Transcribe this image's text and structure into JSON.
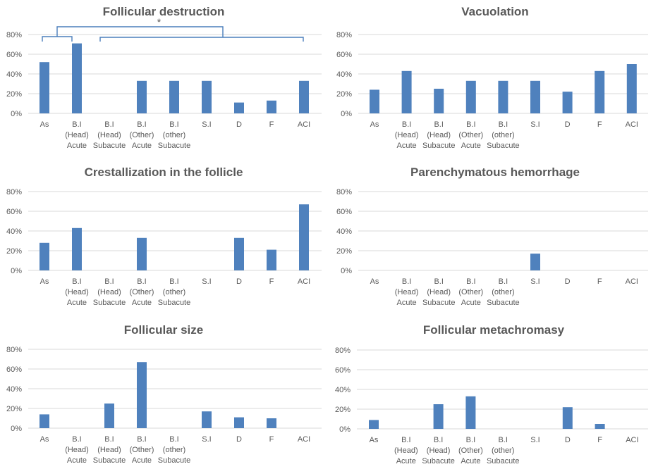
{
  "chart_data": [
    {
      "type": "bar",
      "title": "Follicular destruction",
      "categories": [
        "As",
        "B.I (Head) Acute",
        "B.I (Head) Subacute",
        "B.I (Other) Acute",
        "B.I (other) Subacute",
        "S.I",
        "D",
        "F",
        "ACI"
      ],
      "category_lines": [
        [
          "As"
        ],
        [
          "B.I",
          "(Head)",
          "Acute"
        ],
        [
          "B.I",
          "(Head)",
          "Subacute"
        ],
        [
          "B.I",
          "(Other)",
          "Acute"
        ],
        [
          "B.I",
          "(other)",
          "Subacute"
        ],
        [
          "S.I"
        ],
        [
          "D"
        ],
        [
          "F"
        ],
        [
          "ACI"
        ]
      ],
      "values": [
        52,
        71,
        0,
        33,
        33,
        33,
        11,
        13,
        33
      ],
      "ylim": [
        0,
        80
      ],
      "yticks": [
        "0%",
        "20%",
        "40%",
        "60%",
        "80%"
      ],
      "grid": true,
      "xlabel": "",
      "ylabel": "",
      "annotation": {
        "label": "*",
        "groups": [
          [
            "As",
            "B.I (Head) Acute"
          ],
          [
            "B.I (Head) Subacute",
            "ACI"
          ]
        ],
        "description": "significance bracket between group As–B.I (Head) Acute and group B.I (Head) Subacute–ACI"
      }
    },
    {
      "type": "bar",
      "title": "Vacuolation",
      "categories": [
        "As",
        "B.I (Head) Acute",
        "B.I (Head) Subacute",
        "B.I (Other) Acute",
        "B.I (other) Subacute",
        "S.I",
        "D",
        "F",
        "ACI"
      ],
      "category_lines": [
        [
          "As"
        ],
        [
          "B.I",
          "(Head)",
          "Acute"
        ],
        [
          "B.I",
          "(Head)",
          "Subacute"
        ],
        [
          "B.I",
          "(Other)",
          "Acute"
        ],
        [
          "B.I",
          "(other)",
          "Subacute"
        ],
        [
          "S.I"
        ],
        [
          "D"
        ],
        [
          "F"
        ],
        [
          "ACI"
        ]
      ],
      "values": [
        24,
        43,
        25,
        33,
        33,
        33,
        22,
        43,
        50
      ],
      "ylim": [
        0,
        80
      ],
      "yticks": [
        "0%",
        "20%",
        "40%",
        "60%",
        "80%"
      ],
      "grid": true,
      "xlabel": "",
      "ylabel": ""
    },
    {
      "type": "bar",
      "title": "Crestallization in the follicle",
      "categories": [
        "As",
        "B.I (Head) Acute",
        "B.I (Head) Subacute",
        "B.I (Other) Acute",
        "B.I (other) Subacute",
        "S.I",
        "D",
        "F",
        "ACI"
      ],
      "category_lines": [
        [
          "As"
        ],
        [
          "B.I",
          "(Head)",
          "Acute"
        ],
        [
          "B.I",
          "(Head)",
          "Subacute"
        ],
        [
          "B.I",
          "(Other)",
          "Acute"
        ],
        [
          "B.I",
          "(other)",
          "Subacute"
        ],
        [
          "S.I"
        ],
        [
          "D"
        ],
        [
          "F"
        ],
        [
          "ACI"
        ]
      ],
      "values": [
        28,
        43,
        0,
        33,
        0,
        0,
        33,
        21,
        67
      ],
      "ylim": [
        0,
        80
      ],
      "yticks": [
        "0%",
        "20%",
        "40%",
        "60%",
        "80%"
      ],
      "grid": true,
      "xlabel": "",
      "ylabel": ""
    },
    {
      "type": "bar",
      "title": "Parenchymatous hemorrhage",
      "categories": [
        "As",
        "B.I (Head) Acute",
        "B.I (Head) Subacute",
        "B.I (Other) Acute",
        "B.I (other) Subacute",
        "S.I",
        "D",
        "F",
        "ACI"
      ],
      "category_lines": [
        [
          "As"
        ],
        [
          "B.I",
          "(Head)",
          "Acute"
        ],
        [
          "B.I",
          "(Head)",
          "Subacute"
        ],
        [
          "B.I",
          "(Other)",
          "Acute"
        ],
        [
          "B.I",
          "(other)",
          "Subacute"
        ],
        [
          "S.I"
        ],
        [
          "D"
        ],
        [
          "F"
        ],
        [
          "ACI"
        ]
      ],
      "values": [
        0,
        0,
        0,
        0,
        0,
        17,
        0,
        0,
        0
      ],
      "ylim": [
        0,
        80
      ],
      "yticks": [
        "0%",
        "20%",
        "40%",
        "60%",
        "80%"
      ],
      "grid": true,
      "xlabel": "",
      "ylabel": ""
    },
    {
      "type": "bar",
      "title": "Follicular size",
      "categories": [
        "As",
        "B.I (Head) Acute",
        "B.I (Head) Subacute",
        "B.I (Other) Acute",
        "B.I (other) Subacute",
        "S.I",
        "D",
        "F",
        "ACI"
      ],
      "category_lines": [
        [
          "As"
        ],
        [
          "B.I",
          "(Head)",
          "Acute"
        ],
        [
          "B.I",
          "(Head)",
          "Subacute"
        ],
        [
          "B.I",
          "(Other)",
          "Acute"
        ],
        [
          "B.I",
          "(other)",
          "Subacute"
        ],
        [
          "S.I"
        ],
        [
          "D"
        ],
        [
          "F"
        ],
        [
          "ACI"
        ]
      ],
      "values": [
        14,
        0,
        25,
        67,
        0,
        17,
        11,
        10,
        0
      ],
      "ylim": [
        0,
        80
      ],
      "yticks": [
        "0%",
        "20%",
        "40%",
        "60%",
        "80%"
      ],
      "grid": true,
      "xlabel": "",
      "ylabel": ""
    },
    {
      "type": "bar",
      "title": "Follicular metachromasy",
      "categories": [
        "As",
        "B.I (Head) Acute",
        "B.I (Head) Subacute",
        "B.I (Other) Acute",
        "B.I (other) Subacute",
        "S.I",
        "D",
        "F",
        "ACI"
      ],
      "category_lines": [
        [
          "As"
        ],
        [
          "B.I",
          "(Head)",
          "Acute"
        ],
        [
          "B.I",
          "(Head)",
          "Subacute"
        ],
        [
          "B.I",
          "(Other)",
          "Acute"
        ],
        [
          "B.I",
          "(other)",
          "Subacute"
        ],
        [
          "S.I"
        ],
        [
          "D"
        ],
        [
          "F"
        ],
        [
          "ACI"
        ]
      ],
      "values": [
        9,
        0,
        25,
        33,
        0,
        0,
        22,
        5,
        0
      ],
      "ylim": [
        0,
        80
      ],
      "yticks": [
        "0%",
        "20%",
        "40%",
        "60%",
        "80%"
      ],
      "grid": true,
      "xlabel": "",
      "ylabel": ""
    }
  ],
  "colors": {
    "bar": "#4f81bd",
    "grid": "#d9d9d9",
    "text": "#595959",
    "bracket": "#4a7ebb"
  }
}
